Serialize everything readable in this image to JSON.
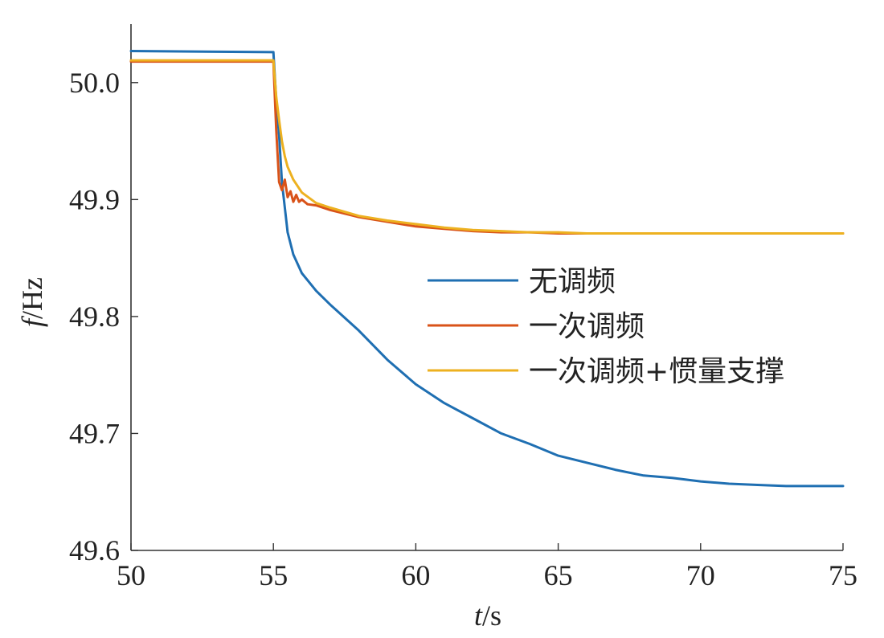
{
  "chart_data": {
    "type": "line",
    "xlabel": {
      "var": "t",
      "unit": "/s"
    },
    "ylabel": {
      "var": "f",
      "unit": "/Hz"
    },
    "xlim": [
      50,
      75
    ],
    "ylim": [
      49.6,
      50.05
    ],
    "xticks": [
      50,
      55,
      60,
      65,
      70,
      75
    ],
    "yticks": [
      49.6,
      49.7,
      49.8,
      49.9,
      50.0
    ],
    "xtick_labels": [
      "50",
      "55",
      "60",
      "65",
      "70",
      "75"
    ],
    "ytick_labels": [
      "49.6",
      "49.7",
      "49.8",
      "49.9",
      "50.0"
    ],
    "grid": false,
    "legend_position": "center-right",
    "series": [
      {
        "name": "无调频",
        "color": "#1f6fb2",
        "x": [
          50,
          55,
          55.1,
          55.2,
          55.3,
          55.5,
          55.7,
          56,
          56.5,
          57,
          58,
          59,
          60,
          61,
          62,
          63,
          64,
          65,
          66,
          67,
          68,
          69,
          70,
          71,
          72,
          73,
          74,
          75
        ],
        "y": [
          50.027,
          50.026,
          49.985,
          49.955,
          49.915,
          49.872,
          49.853,
          49.837,
          49.822,
          49.81,
          49.788,
          49.763,
          49.742,
          49.726,
          49.713,
          49.7,
          49.691,
          49.681,
          49.675,
          49.669,
          49.664,
          49.662,
          49.659,
          49.657,
          49.656,
          49.655,
          49.655,
          49.655
        ]
      },
      {
        "name": "一次调频",
        "color": "#d95319",
        "x": [
          50,
          55,
          55.1,
          55.2,
          55.3,
          55.4,
          55.5,
          55.6,
          55.7,
          55.8,
          55.9,
          56,
          56.2,
          56.5,
          57,
          58,
          59,
          60,
          61,
          62,
          63,
          64,
          65,
          66,
          67,
          68,
          69,
          70,
          71,
          72,
          73,
          74,
          75
        ],
        "y": [
          50.018,
          50.018,
          49.96,
          49.915,
          49.908,
          49.917,
          49.902,
          49.907,
          49.898,
          49.904,
          49.898,
          49.9,
          49.896,
          49.895,
          49.891,
          49.885,
          49.881,
          49.877,
          49.875,
          49.873,
          49.872,
          49.872,
          49.871,
          49.871,
          49.871,
          49.871,
          49.871,
          49.871,
          49.871,
          49.871,
          49.871,
          49.871,
          49.871
        ]
      },
      {
        "name": "一次调频+惯量支撑",
        "color": "#edb120",
        "x": [
          50,
          55,
          55.1,
          55.2,
          55.3,
          55.4,
          55.5,
          55.7,
          56,
          56.5,
          57,
          58,
          59,
          60,
          61,
          62,
          63,
          64,
          65,
          66,
          67,
          68,
          69,
          70,
          71,
          72,
          73,
          74,
          75
        ],
        "y": [
          50.019,
          50.019,
          49.988,
          49.968,
          49.95,
          49.937,
          49.928,
          49.917,
          49.906,
          49.897,
          49.893,
          49.886,
          49.882,
          49.879,
          49.876,
          49.874,
          49.873,
          49.872,
          49.872,
          49.871,
          49.871,
          49.871,
          49.871,
          49.871,
          49.871,
          49.871,
          49.871,
          49.871,
          49.871
        ]
      }
    ]
  }
}
